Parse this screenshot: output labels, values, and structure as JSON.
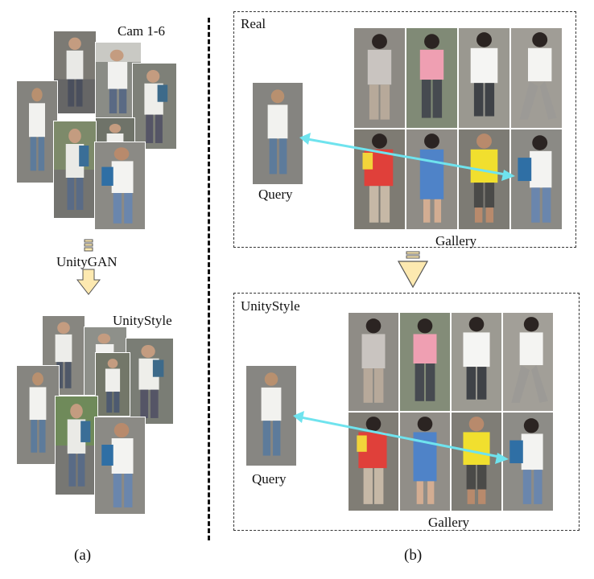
{
  "left": {
    "cam_label": "Cam 1-6",
    "gan_label": "UnityGAN",
    "style_label": "UnityStyle",
    "caption": "(a)"
  },
  "right": {
    "real_panel": {
      "title": "Real",
      "query_label": "Query",
      "gallery_label": "Gallery"
    },
    "unity_panel": {
      "title": "UnityStyle",
      "query_label": "Query",
      "gallery_label": "Gallery"
    },
    "caption": "(b)"
  },
  "colors": {
    "match_arrow": "#6fe3ee",
    "down_arrow_fill": "#fde9b0",
    "down_arrow_stroke": "#555555",
    "panel_border": "#333333"
  },
  "icons": [
    "person-photo",
    "down-arrow-icon",
    "match-arrow"
  ]
}
